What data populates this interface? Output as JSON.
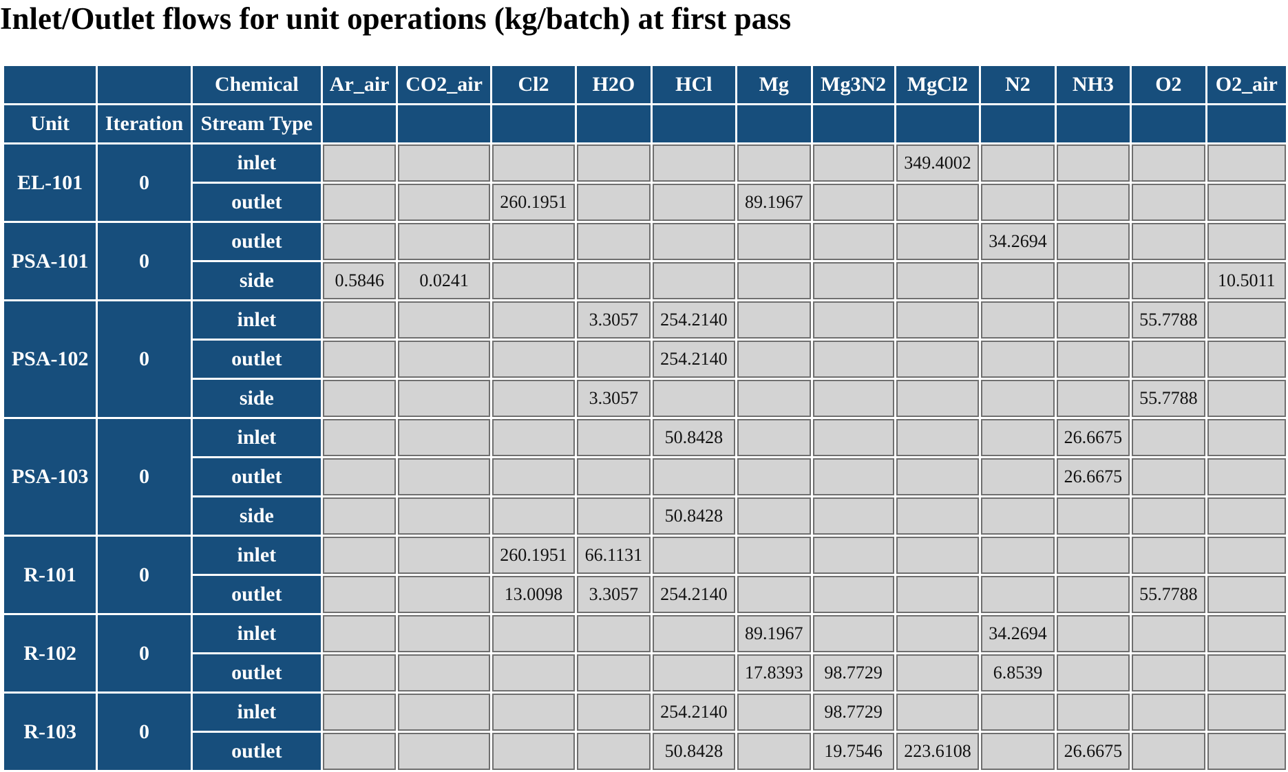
{
  "title": "Inlet/Outlet flows for unit operations (kg/batch) at first pass",
  "header": {
    "chemical_label": "Chemical",
    "unit_label": "Unit",
    "iteration_label": "Iteration",
    "stream_type_label": "Stream Type",
    "chemicals": [
      "Ar_air",
      "CO2_air",
      "Cl2",
      "H2O",
      "HCl",
      "Mg",
      "Mg3N2",
      "MgCl2",
      "N2",
      "NH3",
      "O2",
      "O2_air"
    ]
  },
  "units": [
    {
      "unit": "EL-101",
      "iteration": "0",
      "streams": [
        {
          "type": "inlet",
          "values": [
            "",
            "",
            "",
            "",
            "",
            "",
            "",
            "349.4002",
            "",
            "",
            "",
            ""
          ]
        },
        {
          "type": "outlet",
          "values": [
            "",
            "",
            "260.1951",
            "",
            "",
            "89.1967",
            "",
            "",
            "",
            "",
            "",
            ""
          ]
        }
      ]
    },
    {
      "unit": "PSA-101",
      "iteration": "0",
      "streams": [
        {
          "type": "outlet",
          "values": [
            "",
            "",
            "",
            "",
            "",
            "",
            "",
            "",
            "34.2694",
            "",
            "",
            ""
          ]
        },
        {
          "type": "side",
          "values": [
            "0.5846",
            "0.0241",
            "",
            "",
            "",
            "",
            "",
            "",
            "",
            "",
            "",
            "10.5011"
          ]
        }
      ]
    },
    {
      "unit": "PSA-102",
      "iteration": "0",
      "streams": [
        {
          "type": "inlet",
          "values": [
            "",
            "",
            "",
            "3.3057",
            "254.2140",
            "",
            "",
            "",
            "",
            "",
            "55.7788",
            ""
          ]
        },
        {
          "type": "outlet",
          "values": [
            "",
            "",
            "",
            "",
            "254.2140",
            "",
            "",
            "",
            "",
            "",
            "",
            ""
          ]
        },
        {
          "type": "side",
          "values": [
            "",
            "",
            "",
            "3.3057",
            "",
            "",
            "",
            "",
            "",
            "",
            "55.7788",
            ""
          ]
        }
      ]
    },
    {
      "unit": "PSA-103",
      "iteration": "0",
      "streams": [
        {
          "type": "inlet",
          "values": [
            "",
            "",
            "",
            "",
            "50.8428",
            "",
            "",
            "",
            "",
            "26.6675",
            "",
            ""
          ]
        },
        {
          "type": "outlet",
          "values": [
            "",
            "",
            "",
            "",
            "",
            "",
            "",
            "",
            "",
            "26.6675",
            "",
            ""
          ]
        },
        {
          "type": "side",
          "values": [
            "",
            "",
            "",
            "",
            "50.8428",
            "",
            "",
            "",
            "",
            "",
            "",
            ""
          ]
        }
      ]
    },
    {
      "unit": "R-101",
      "iteration": "0",
      "streams": [
        {
          "type": "inlet",
          "values": [
            "",
            "",
            "260.1951",
            "66.1131",
            "",
            "",
            "",
            "",
            "",
            "",
            "",
            ""
          ]
        },
        {
          "type": "outlet",
          "values": [
            "",
            "",
            "13.0098",
            "3.3057",
            "254.2140",
            "",
            "",
            "",
            "",
            "",
            "55.7788",
            ""
          ]
        }
      ]
    },
    {
      "unit": "R-102",
      "iteration": "0",
      "streams": [
        {
          "type": "inlet",
          "values": [
            "",
            "",
            "",
            "",
            "",
            "89.1967",
            "",
            "",
            "34.2694",
            "",
            "",
            ""
          ]
        },
        {
          "type": "outlet",
          "values": [
            "",
            "",
            "",
            "",
            "",
            "17.8393",
            "98.7729",
            "",
            "6.8539",
            "",
            "",
            ""
          ]
        }
      ]
    },
    {
      "unit": "R-103",
      "iteration": "0",
      "streams": [
        {
          "type": "inlet",
          "values": [
            "",
            "",
            "",
            "",
            "254.2140",
            "",
            "98.7729",
            "",
            "",
            "",
            "",
            ""
          ]
        },
        {
          "type": "outlet",
          "values": [
            "",
            "",
            "",
            "",
            "50.8428",
            "",
            "19.7546",
            "223.6108",
            "",
            "26.6675",
            "",
            ""
          ]
        }
      ]
    }
  ]
}
